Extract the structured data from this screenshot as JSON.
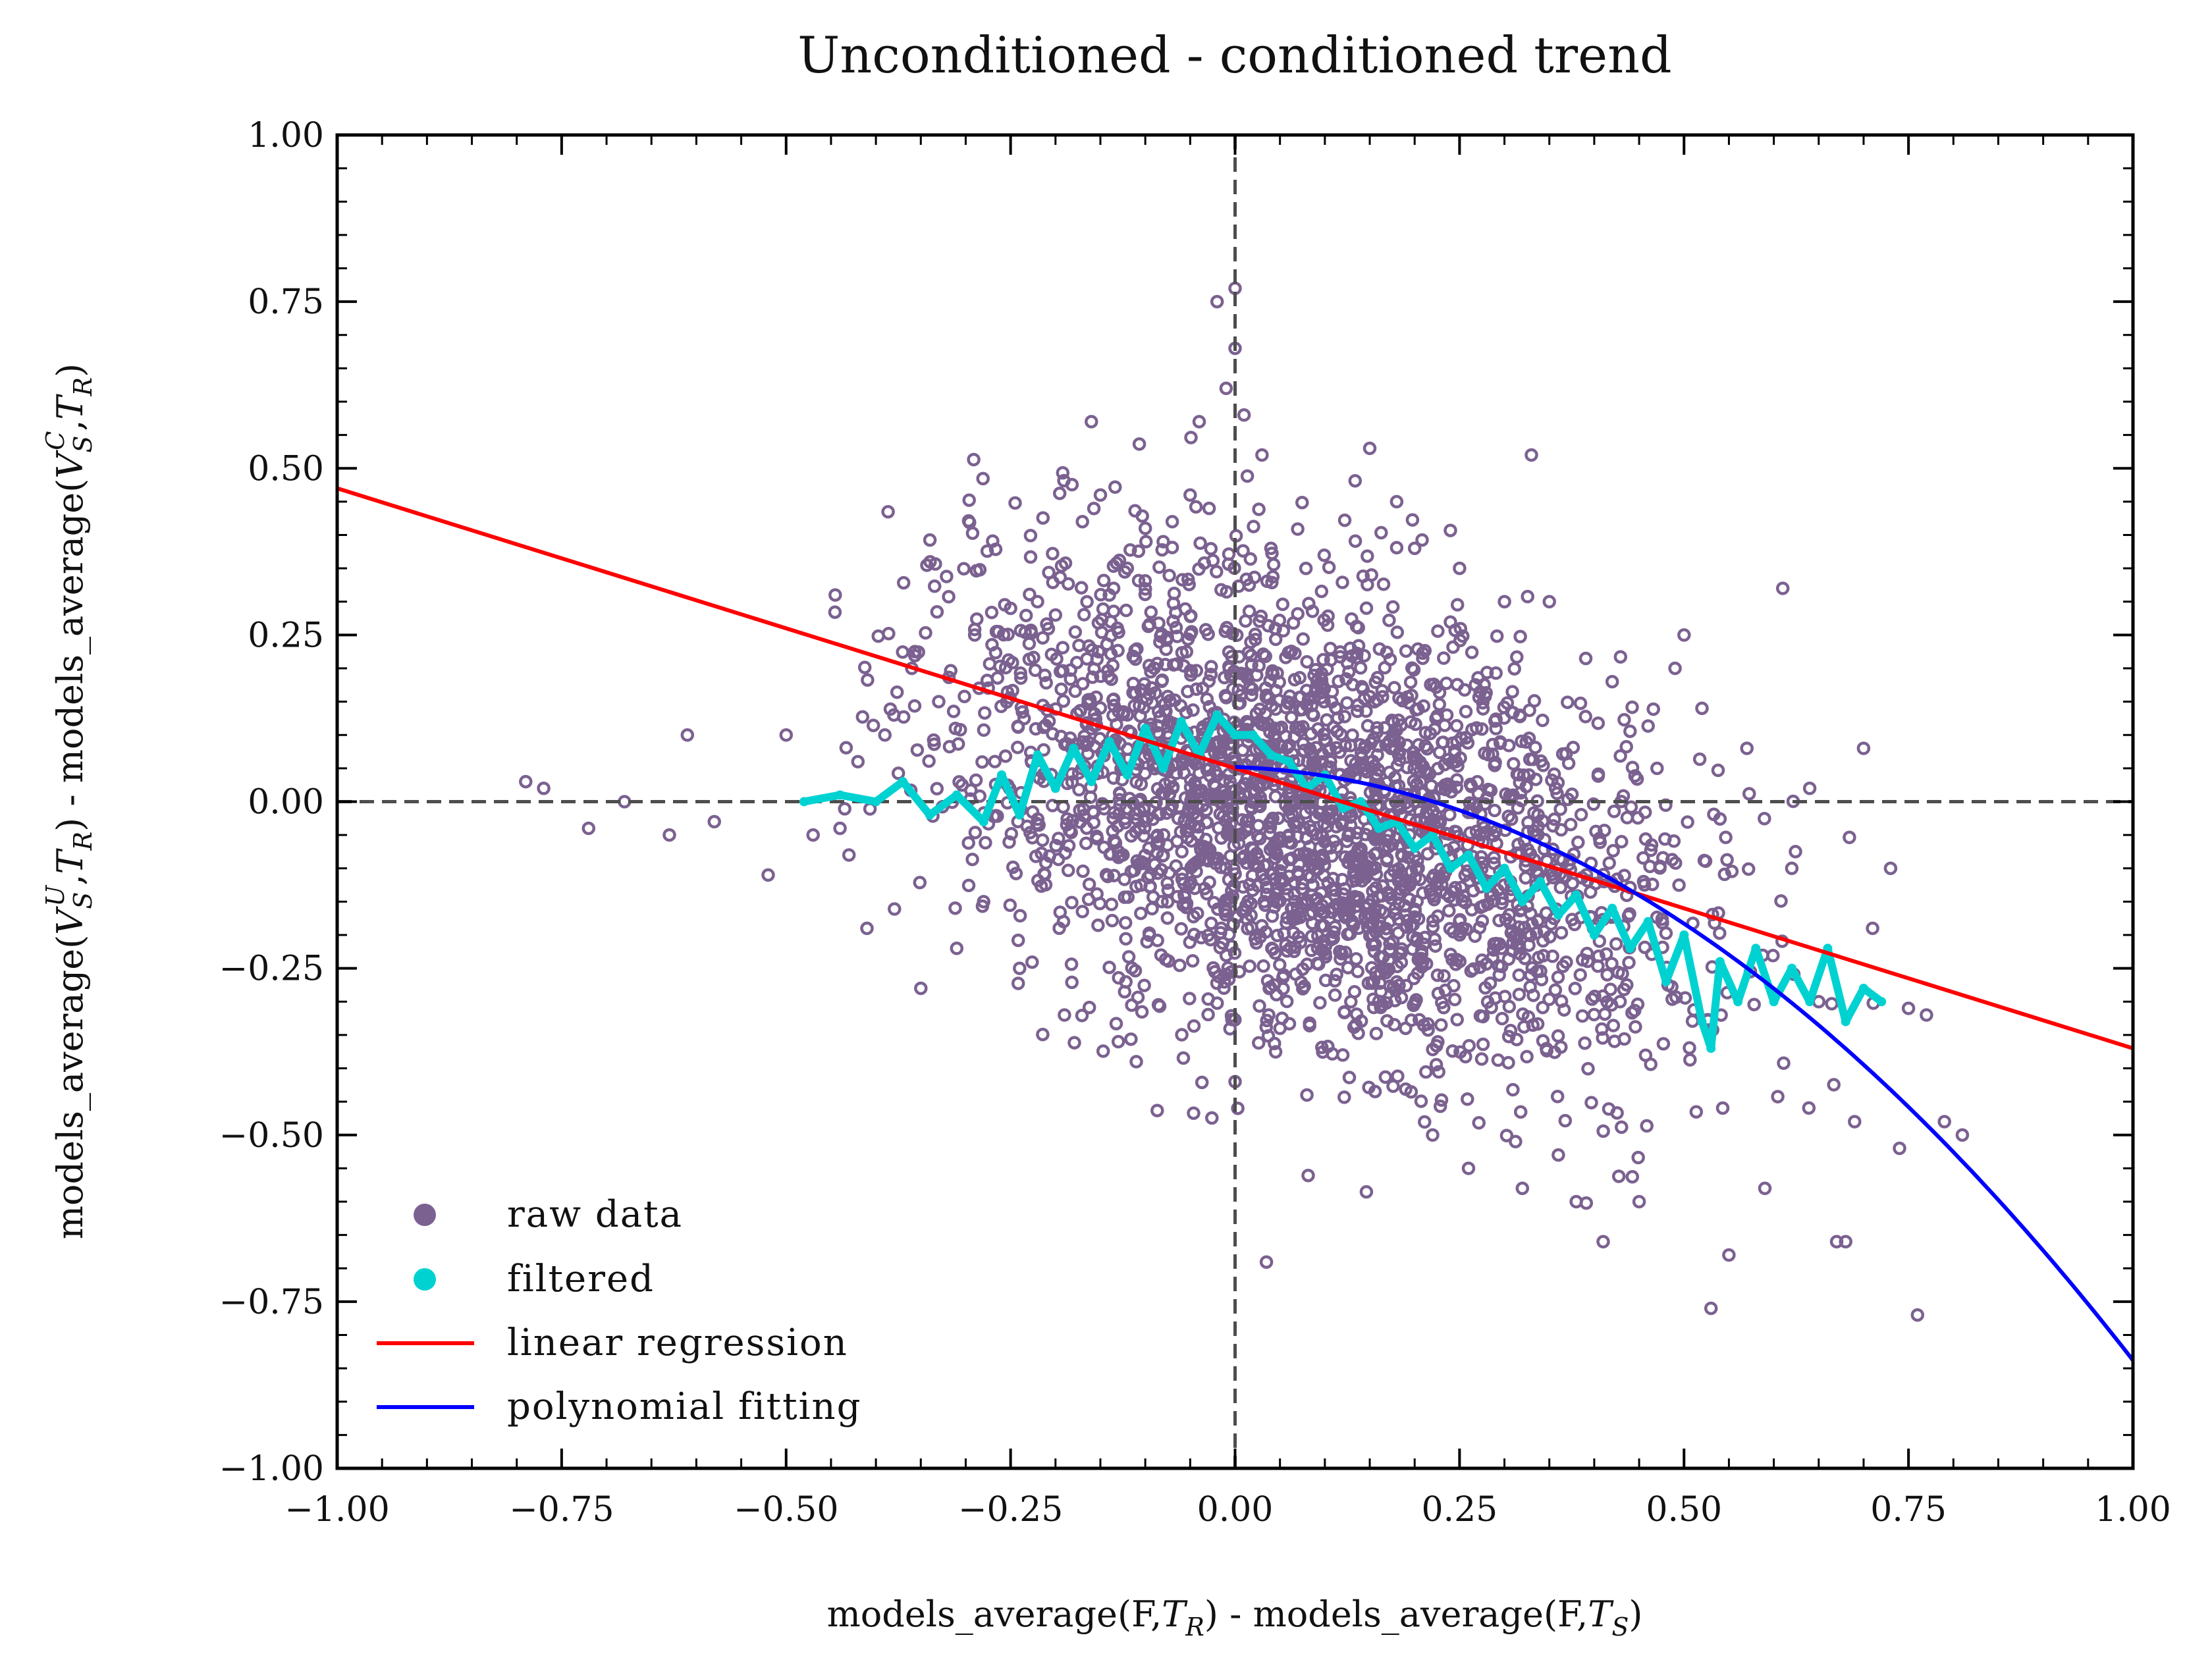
{
  "chart_data": {
    "type": "scatter",
    "title": "Unconditioned - conditioned trend",
    "xlabel": "models_average(F,T_R) - models_average(F,T_S)",
    "ylabel": "models_average(V_S^U,T_R) - models_average(V_S^C,T_R)",
    "xlim": [
      -1.0,
      1.0
    ],
    "ylim": [
      -1.0,
      1.0
    ],
    "x_ticks": [
      "−1.00",
      "−0.75",
      "−0.50",
      "−0.25",
      "0.00",
      "0.25",
      "0.50",
      "0.75",
      "1.00"
    ],
    "y_ticks": [
      "1.00",
      "0.75",
      "0.50",
      "0.25",
      "0.00",
      "−0.25",
      "−0.50",
      "−0.75",
      "−1.00"
    ],
    "x_tick_values": [
      -1.0,
      -0.75,
      -0.5,
      -0.25,
      0.0,
      0.25,
      0.5,
      0.75,
      1.0
    ],
    "y_tick_values": [
      1.0,
      0.75,
      0.5,
      0.25,
      0.0,
      -0.25,
      -0.5,
      -0.75,
      -1.0
    ],
    "grid": false,
    "reference_lines": {
      "x": 0.0,
      "y": 0.0,
      "style": "dashed",
      "color": "#4d4d4d"
    },
    "legend_placement": "lower-left",
    "series": [
      {
        "name": "raw data",
        "kind": "scatter",
        "color": "#7b6190",
        "outliers": [
          [
            -0.79,
            0.03
          ],
          [
            -0.77,
            0.02
          ],
          [
            -0.72,
            -0.04
          ],
          [
            -0.68,
            0.0
          ],
          [
            -0.63,
            -0.05
          ],
          [
            -0.61,
            0.1
          ],
          [
            -0.58,
            -0.03
          ],
          [
            -0.52,
            -0.11
          ],
          [
            -0.5,
            0.1
          ],
          [
            -0.47,
            -0.05
          ],
          [
            -0.44,
            -0.04
          ],
          [
            -0.43,
            -0.08
          ],
          [
            -0.42,
            0.06
          ],
          [
            -0.41,
            -0.19
          ],
          [
            -0.39,
            0.1
          ],
          [
            -0.38,
            0.13
          ],
          [
            -0.36,
            0.2
          ],
          [
            -0.35,
            -0.28
          ],
          [
            -0.33,
            0.15
          ],
          [
            -0.31,
            -0.22
          ],
          [
            -0.29,
            0.25
          ],
          [
            -0.28,
            -0.15
          ],
          [
            -0.25,
            0.29
          ],
          [
            -0.24,
            -0.25
          ],
          [
            -0.22,
            0.3
          ],
          [
            -0.2,
            0.28
          ],
          [
            -0.19,
            -0.32
          ],
          [
            -0.17,
            0.42
          ],
          [
            -0.16,
            0.57
          ],
          [
            -0.15,
            0.46
          ],
          [
            -0.14,
            0.31
          ],
          [
            -0.13,
            -0.36
          ],
          [
            -0.12,
            0.35
          ],
          [
            -0.11,
            -0.39
          ],
          [
            -0.1,
            0.41
          ],
          [
            -0.08,
            0.39
          ],
          [
            -0.07,
            0.42
          ],
          [
            -0.05,
            0.46
          ],
          [
            -0.04,
            0.57
          ],
          [
            -0.02,
            0.75
          ],
          [
            -0.01,
            0.62
          ],
          [
            0.0,
            0.68
          ],
          [
            0.0,
            0.77
          ],
          [
            0.01,
            0.58
          ],
          [
            0.0,
            -0.42
          ],
          [
            0.03,
            0.52
          ],
          [
            0.04,
            0.38
          ],
          [
            0.05,
            -0.34
          ],
          [
            0.08,
            -0.44
          ],
          [
            0.12,
            -0.38
          ],
          [
            0.15,
            0.53
          ],
          [
            0.18,
            0.45
          ],
          [
            0.2,
            0.38
          ],
          [
            0.22,
            -0.5
          ],
          [
            0.25,
            0.35
          ],
          [
            0.26,
            -0.55
          ],
          [
            0.3,
            0.3
          ],
          [
            0.32,
            -0.58
          ],
          [
            0.33,
            0.52
          ],
          [
            0.35,
            0.3
          ],
          [
            0.36,
            -0.53
          ],
          [
            0.38,
            -0.6
          ],
          [
            0.41,
            -0.66
          ],
          [
            0.42,
            0.18
          ],
          [
            0.45,
            -0.6
          ],
          [
            0.47,
            0.05
          ],
          [
            0.49,
            0.2
          ],
          [
            0.5,
            0.25
          ],
          [
            0.52,
            0.14
          ],
          [
            0.53,
            -0.76
          ],
          [
            0.55,
            -0.68
          ],
          [
            0.57,
            0.08
          ],
          [
            0.59,
            -0.58
          ],
          [
            0.61,
            0.32
          ],
          [
            0.62,
            -0.1
          ],
          [
            0.64,
            0.02
          ],
          [
            0.65,
            -0.3
          ],
          [
            0.67,
            -0.66
          ],
          [
            0.68,
            -0.66
          ],
          [
            0.69,
            -0.48
          ],
          [
            0.7,
            0.08
          ],
          [
            0.71,
            -0.19
          ],
          [
            0.73,
            -0.1
          ],
          [
            0.74,
            -0.52
          ],
          [
            0.75,
            -0.31
          ],
          [
            0.76,
            -0.77
          ],
          [
            0.77,
            -0.32
          ],
          [
            0.79,
            -0.48
          ],
          [
            0.81,
            -0.5
          ]
        ],
        "cloud": {
          "center": [
            0.08,
            -0.02
          ],
          "spread_x": 0.2,
          "spread_y": 0.17,
          "slope": -0.4,
          "count": 2600
        }
      },
      {
        "name": "filtered",
        "kind": "line-markers",
        "color": "#00d2d2",
        "points": [
          [
            -0.48,
            0.0
          ],
          [
            -0.44,
            0.01
          ],
          [
            -0.4,
            0.0
          ],
          [
            -0.37,
            0.03
          ],
          [
            -0.34,
            -0.02
          ],
          [
            -0.31,
            0.01
          ],
          [
            -0.28,
            -0.03
          ],
          [
            -0.26,
            0.04
          ],
          [
            -0.24,
            -0.02
          ],
          [
            -0.22,
            0.07
          ],
          [
            -0.2,
            0.02
          ],
          [
            -0.18,
            0.08
          ],
          [
            -0.16,
            0.03
          ],
          [
            -0.14,
            0.09
          ],
          [
            -0.12,
            0.04
          ],
          [
            -0.1,
            0.11
          ],
          [
            -0.08,
            0.05
          ],
          [
            -0.06,
            0.12
          ],
          [
            -0.04,
            0.07
          ],
          [
            -0.02,
            0.13
          ],
          [
            0.0,
            0.1
          ],
          [
            0.02,
            0.1
          ],
          [
            0.04,
            0.07
          ],
          [
            0.06,
            0.06
          ],
          [
            0.08,
            0.02
          ],
          [
            0.1,
            0.04
          ],
          [
            0.12,
            -0.01
          ],
          [
            0.14,
            0.0
          ],
          [
            0.16,
            -0.04
          ],
          [
            0.18,
            -0.03
          ],
          [
            0.2,
            -0.07
          ],
          [
            0.22,
            -0.05
          ],
          [
            0.24,
            -0.1
          ],
          [
            0.26,
            -0.08
          ],
          [
            0.28,
            -0.13
          ],
          [
            0.3,
            -0.1
          ],
          [
            0.32,
            -0.15
          ],
          [
            0.34,
            -0.12
          ],
          [
            0.36,
            -0.17
          ],
          [
            0.38,
            -0.14
          ],
          [
            0.4,
            -0.2
          ],
          [
            0.42,
            -0.16
          ],
          [
            0.44,
            -0.22
          ],
          [
            0.46,
            -0.18
          ],
          [
            0.48,
            -0.27
          ],
          [
            0.5,
            -0.2
          ],
          [
            0.52,
            -0.33
          ],
          [
            0.53,
            -0.37
          ],
          [
            0.54,
            -0.24
          ],
          [
            0.56,
            -0.3
          ],
          [
            0.58,
            -0.22
          ],
          [
            0.6,
            -0.3
          ],
          [
            0.62,
            -0.25
          ],
          [
            0.64,
            -0.3
          ],
          [
            0.66,
            -0.22
          ],
          [
            0.68,
            -0.33
          ],
          [
            0.7,
            -0.28
          ],
          [
            0.72,
            -0.3
          ]
        ]
      },
      {
        "name": "linear regression",
        "kind": "line",
        "color": "#ff0000",
        "slope": -0.42,
        "intercept": 0.05
      },
      {
        "name": "polynomial fitting",
        "kind": "line",
        "color": "#0000ff",
        "x_range": [
          0.0,
          1.0
        ],
        "coefficients": [
          0.052,
          -0.05,
          -0.84
        ]
      }
    ]
  }
}
